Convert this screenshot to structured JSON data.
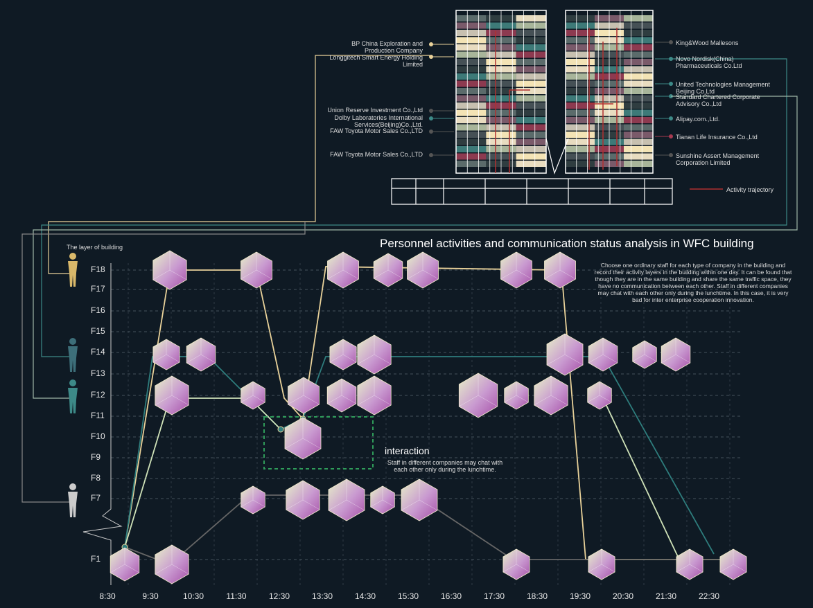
{
  "title": "Personnel activities and communication status analysis in WFC building",
  "layer_label": "The layer of building",
  "floors": [
    "F18",
    "F17",
    "F16",
    "F15",
    "F14",
    "F13",
    "F12",
    "F11",
    "F10",
    "F9",
    "F8",
    "F7",
    "F1"
  ],
  "times": [
    "8:30",
    "9:30",
    "10:30",
    "11:30",
    "12:30",
    "13:30",
    "14:30",
    "15:30",
    "16:30",
    "17:30",
    "18:30",
    "19:30",
    "20:30",
    "21:30",
    "22:30"
  ],
  "left_companies": [
    "BP China Exploration and Production Company",
    "Longgitech Smart Energy Holding Limited",
    "Union Reserve Investment Co.,Ltd",
    "Dolby Laboratories International Services(Beijing)Co.,Ltd.",
    "FAW Toyota Motor Sales Co.,LTD",
    "FAW Toyota Motor Sales Co.,LTD"
  ],
  "right_companies": [
    "King&Wood Mallesons",
    "Novo Nordisk(China) Pharmaceuticals Co.Ltd",
    "United Technologies Management Beijing Co.Ltd",
    "Standard Chartered Corporate Advisory Co.,Ltd",
    "Alipay.com.,Ltd.",
    "Tianan Life Insurance Co.,Ltd",
    "Sunshine Assert Management Corporation Limited"
  ],
  "legend": "Activity trajectory",
  "description": "Choose one ordinary staff for each type of company in the building and record their activity layers in the building within one day. It can be found that though they are in the same building and share the same traffic space, they have no communication between each other. Staff in different companies may chat with each other only during the lunchtime. In this case, it is very bad for inter enterprise cooperation innovation.",
  "interaction": {
    "title": "interaction",
    "text": "Staff in different companies may chat with each other only during the lunchtime."
  }
}
